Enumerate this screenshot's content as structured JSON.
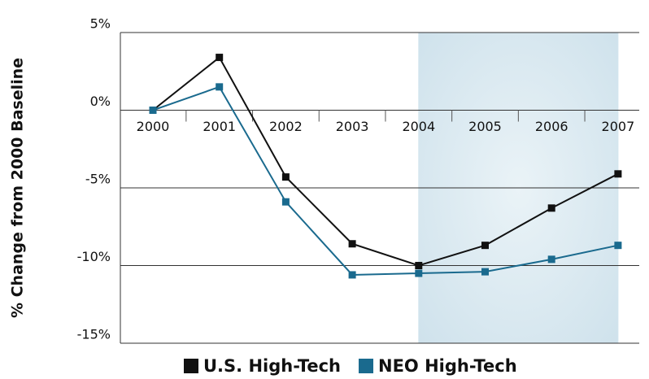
{
  "chart_data": {
    "type": "line",
    "y_label": "% Change from 2000 Baseline",
    "categories": [
      "2000",
      "2001",
      "2002",
      "2003",
      "2004",
      "2005",
      "2006",
      "2007"
    ],
    "series": [
      {
        "name": "U.S. High-Tech",
        "color": "#111111",
        "values": [
          0,
          3.4,
          -4.3,
          -8.6,
          -10.0,
          -8.7,
          -6.3,
          -4.1
        ]
      },
      {
        "name": "NEO High-Tech",
        "color": "#1a6a8e",
        "values": [
          0,
          1.5,
          -5.9,
          -10.6,
          -10.5,
          -10.4,
          -9.6,
          -8.7
        ]
      }
    ],
    "ylim": [
      -15,
      5
    ],
    "yticks": [
      {
        "value": 5,
        "label": "5%"
      },
      {
        "value": 0,
        "label": "0%"
      },
      {
        "value": -5,
        "label": "-5%"
      },
      {
        "value": -10,
        "label": "-10%"
      },
      {
        "value": -15,
        "label": "-15%"
      }
    ],
    "grid": true,
    "shaded_range": [
      "2004",
      "2007"
    ],
    "shade_color": "#d3e5ee",
    "legend": "bottom"
  }
}
